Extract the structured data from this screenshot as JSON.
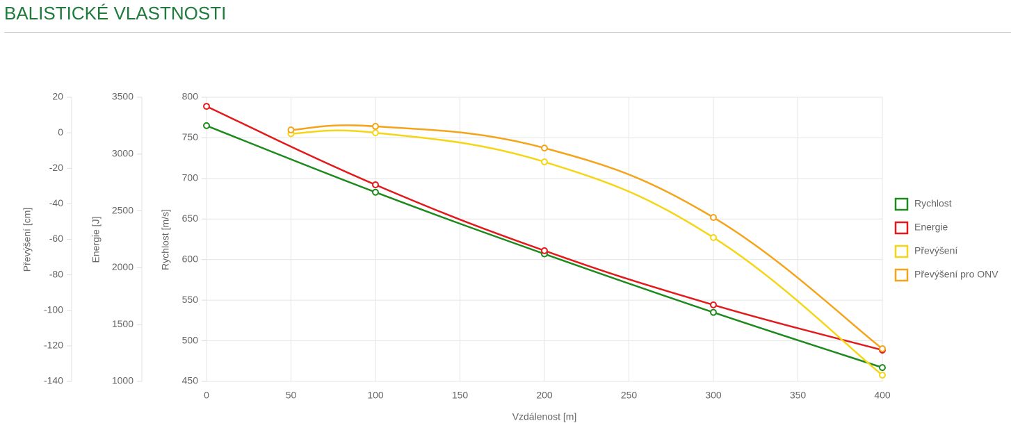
{
  "header": {
    "title": "BALISTICKÉ VLASTNOSTI"
  },
  "chart_data": {
    "type": "line",
    "xlabel": "Vzdálenost [m]",
    "ylabel": "Rychlost [m/s]",
    "y2label": "Energie [J]",
    "y3label": "Převýšení [cm]",
    "xlim": [
      0,
      400
    ],
    "xticks": [
      0,
      50,
      100,
      150,
      200,
      250,
      300,
      350,
      400
    ],
    "ylim": [
      450,
      800
    ],
    "yticks": [
      450,
      500,
      550,
      600,
      650,
      700,
      750,
      800
    ],
    "y2lim": [
      1000,
      3500
    ],
    "y2ticks": [
      1000,
      1500,
      2000,
      2500,
      3000,
      3500
    ],
    "y3lim": [
      -140,
      20
    ],
    "y3ticks": [
      -140,
      -120,
      -100,
      -80,
      -60,
      -40,
      -20,
      0,
      20
    ],
    "grid": true,
    "legend": "right",
    "series": [
      {
        "name": "Rychlost",
        "color": "#1e8a1e",
        "axis": "y",
        "x": [
          0,
          100,
          200,
          300,
          400
        ],
        "values": [
          765,
          683,
          607,
          535,
          467
        ]
      },
      {
        "name": "Energie",
        "color": "#e31a1c",
        "axis": "y2",
        "x": [
          0,
          100,
          200,
          300,
          400
        ],
        "values": [
          3420,
          2730,
          2150,
          1673,
          1275
        ]
      },
      {
        "name": "Převýšení",
        "color": "#f5d617",
        "axis": "y3",
        "x": [
          50,
          100,
          200,
          300,
          400
        ],
        "values": [
          -0.5,
          0,
          -16.4,
          -59,
          -136.5
        ]
      },
      {
        "name": "Převýšení pro ONV",
        "color": "#f5a31a",
        "axis": "y3",
        "x": [
          50,
          100,
          200,
          300,
          400
        ],
        "values": [
          1.6,
          3.6,
          -8.6,
          -47.7,
          -121.6
        ]
      }
    ]
  }
}
